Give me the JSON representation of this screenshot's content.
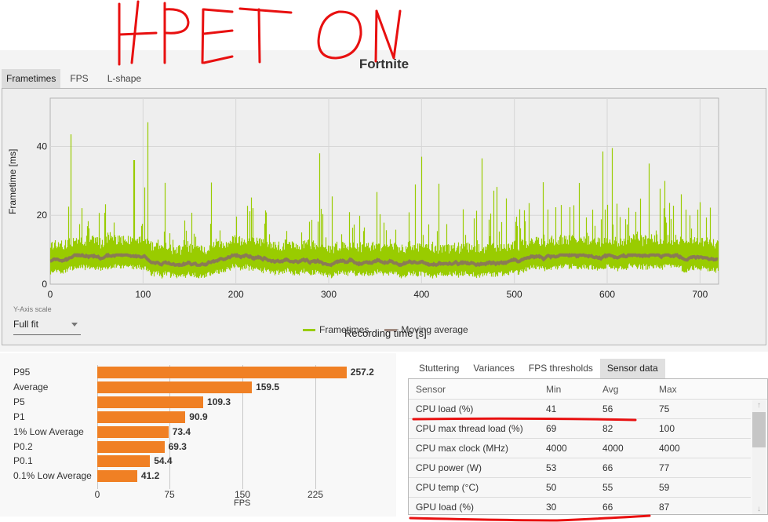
{
  "annotation": {
    "text": "HPET ON",
    "color": "#e81010"
  },
  "window": {
    "title": "Fortnite"
  },
  "upper_tabs": [
    {
      "label": "Frametimes",
      "active": true
    },
    {
      "label": "FPS",
      "active": false
    },
    {
      "label": "L-shape",
      "active": false
    }
  ],
  "frametime_chart": {
    "ylabel": "Frametime [ms]",
    "xlabel": "Recording time [s]",
    "yticks": [
      "0",
      "20",
      "40"
    ],
    "xticks": [
      "0",
      "100",
      "200",
      "300",
      "400",
      "500",
      "600",
      "700"
    ],
    "legend": [
      {
        "label": "Frametimes",
        "color": "#99cc00"
      },
      {
        "label": "Moving average",
        "color": "#8b7b55"
      }
    ]
  },
  "yaxis_scale": {
    "label": "Y-Axis scale",
    "value": "Full fit"
  },
  "fps_bars": {
    "xlabel": "FPS",
    "ticks": [
      "0",
      "75",
      "150",
      "225"
    ],
    "items": [
      {
        "label": "P95",
        "value": "257.2"
      },
      {
        "label": "Average",
        "value": "159.5"
      },
      {
        "label": "P5",
        "value": "109.3"
      },
      {
        "label": "P1",
        "value": "90.9"
      },
      {
        "label": "1% Low Average",
        "value": "73.4"
      },
      {
        "label": "P0.2",
        "value": "69.3"
      },
      {
        "label": "P0.1",
        "value": "54.4"
      },
      {
        "label": "0.1% Low Average",
        "value": "41.2"
      }
    ],
    "bar_color": "#f08024"
  },
  "sensor_tabs": [
    {
      "label": "Stuttering",
      "active": false
    },
    {
      "label": "Variances",
      "active": false
    },
    {
      "label": "FPS thresholds",
      "active": false
    },
    {
      "label": "Sensor data",
      "active": true
    }
  ],
  "sensor_table": {
    "headers": [
      "Sensor",
      "Min",
      "Avg",
      "Max"
    ],
    "rows": [
      [
        "CPU load (%)",
        "41",
        "56",
        "75"
      ],
      [
        "CPU max thread load (%)",
        "69",
        "82",
        "100"
      ],
      [
        "CPU max clock (MHz)",
        "4000",
        "4000",
        "4000"
      ],
      [
        "CPU power (W)",
        "53",
        "66",
        "77"
      ],
      [
        "CPU temp (°C)",
        "50",
        "55",
        "59"
      ],
      [
        "GPU load (%)",
        "30",
        "66",
        "87"
      ]
    ]
  },
  "chart_data": [
    {
      "type": "line",
      "title": "Fortnite",
      "xlabel": "Recording time [s]",
      "ylabel": "Frametime [ms]",
      "xlim": [
        0,
        720
      ],
      "ylim": [
        0,
        54
      ],
      "grid": true,
      "legend_position": "bottom",
      "series": [
        {
          "name": "Frametimes",
          "description": "base band ~4-12 ms with spikes up to ~47 ms",
          "peaks": [
            [
              22,
              43.5
            ],
            [
              105,
              47
            ],
            [
              90,
              36
            ],
            [
              290,
              38
            ],
            [
              400,
              37
            ],
            [
              465,
              36.5
            ],
            [
              595,
              38.5
            ],
            [
              605,
              39.5
            ],
            [
              645,
              35
            ]
          ]
        },
        {
          "name": "Moving average",
          "description": "approximately 6-8 ms across recording",
          "approx_value": 7
        }
      ]
    },
    {
      "type": "bar",
      "orientation": "horizontal",
      "categories": [
        "P95",
        "Average",
        "P5",
        "P1",
        "1% Low Average",
        "P0.2",
        "P0.1",
        "0.1% Low Average"
      ],
      "values": [
        257.2,
        159.5,
        109.3,
        90.9,
        73.4,
        69.3,
        54.4,
        41.2
      ],
      "xlabel": "FPS",
      "xticks": [
        0,
        75,
        150,
        225
      ],
      "xlim": [
        0,
        275
      ]
    }
  ]
}
